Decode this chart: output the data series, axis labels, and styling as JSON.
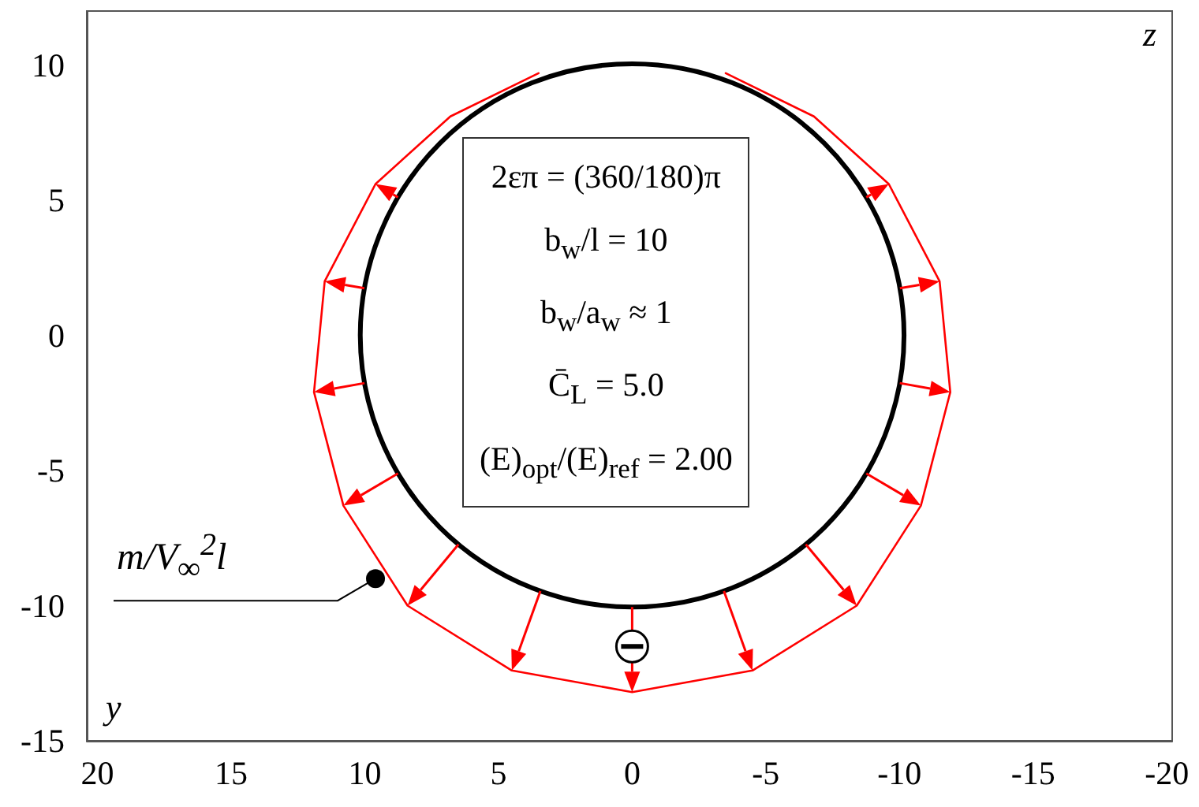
{
  "chart_data": {
    "type": "line",
    "xlabel": "y",
    "ylabel": "z",
    "xlim": [
      20.4,
      -20.2
    ],
    "ylim": [
      -15,
      12
    ],
    "xticks": [
      20,
      15,
      10,
      5,
      0,
      -5,
      -10,
      -15,
      -20
    ],
    "yticks": [
      10,
      5,
      0,
      -5,
      -10,
      -15
    ],
    "grid": false,
    "marker": "none",
    "line_style": "solid",
    "series": [
      {
        "color": "#ff0000",
        "x": [
          3.5,
          6.8,
          9.6,
          11.5,
          11.9,
          10.8,
          8.4,
          4.5,
          0,
          -4.5,
          -8.4,
          -10.8,
          -11.9,
          -11.5,
          -9.6,
          -6.8,
          -3.5
        ],
        "values": [
          9.7,
          8.1,
          5.6,
          2.0,
          -2.1,
          -6.3,
          -10.0,
          -12.4,
          -13.2,
          -12.4,
          -10.0,
          -6.3,
          -2.1,
          2.0,
          5.6,
          8.1,
          9.7
        ]
      }
    ],
    "annotations": [
      "2επ = (360/180)π",
      "b$_{w}$/l = 10",
      "b$_{w}$/a$_{w}$ ≈ 1",
      "C̄$_{L}$ = 5.0",
      "(E)$_{opt}$/(E)$_{ref}$ = 2.00",
      {
        "text": "m/V$_{∞}$$^{2}$l",
        "x": 9.6,
        "y": -9.0
      }
    ]
  }
}
